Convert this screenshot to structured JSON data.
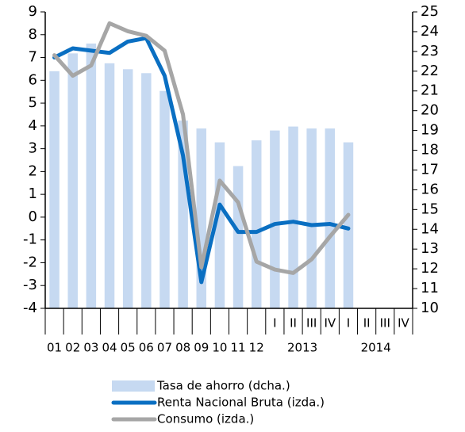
{
  "chart_data": {
    "type": "bar-line",
    "year_categories": [
      "01",
      "02",
      "03",
      "04",
      "05",
      "06",
      "07",
      "08",
      "09",
      "10",
      "11",
      "12"
    ],
    "quarter_groups": [
      {
        "label": "2013",
        "categories": [
          "I",
          "II",
          "III",
          "IV"
        ]
      },
      {
        "label": "2014",
        "categories": [
          "I",
          "II",
          "III",
          "IV"
        ]
      }
    ],
    "ylim": [
      -4,
      9
    ],
    "yticks": [
      -4,
      -3,
      -2,
      -1,
      0,
      1,
      2,
      3,
      4,
      5,
      6,
      7,
      8,
      9
    ],
    "y2lim": [
      10,
      25
    ],
    "y2ticks": [
      10,
      11,
      12,
      13,
      14,
      15,
      16,
      17,
      18,
      19,
      20,
      21,
      22,
      23,
      24,
      25
    ],
    "series": [
      {
        "name": "Tasa de ahorro (dcha.)",
        "type": "bar",
        "axis": "y2",
        "color": "#c6d9f1",
        "values": [
          22.0,
          22.9,
          23.4,
          22.4,
          22.1,
          21.9,
          21.0,
          19.5,
          19.1,
          18.4,
          17.2,
          18.5,
          19.0,
          19.2,
          19.1,
          19.1,
          18.4,
          null,
          null,
          null
        ]
      },
      {
        "name": "Renta Nacional Bruta (izda.)",
        "type": "line",
        "axis": "y",
        "color": "#0a6fc2",
        "values": [
          7.0,
          7.4,
          7.3,
          7.2,
          7.7,
          7.85,
          6.2,
          2.7,
          -2.85,
          0.55,
          -0.65,
          -0.65,
          -0.3,
          -0.2,
          -0.35,
          -0.3,
          -0.5,
          null,
          null,
          null
        ]
      },
      {
        "name": "Consumo (izda.)",
        "type": "line",
        "axis": "y",
        "color": "#a6a6a6",
        "values": [
          7.1,
          6.2,
          6.65,
          8.5,
          8.15,
          7.95,
          7.3,
          4.5,
          -2.2,
          1.6,
          0.65,
          -1.95,
          -2.3,
          -2.45,
          -1.85,
          -0.85,
          0.1,
          null,
          null,
          null
        ]
      }
    ]
  }
}
